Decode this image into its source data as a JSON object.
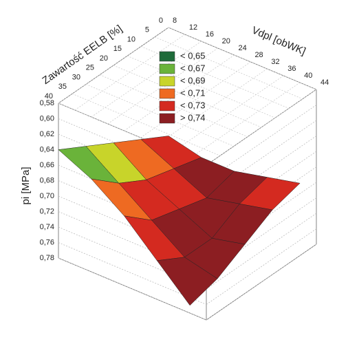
{
  "chart_data": {
    "type": "surface3d",
    "xlabel": "Zawartość EELB [%]",
    "ylabel": "Vdpl [obWK]",
    "zlabel": "pi [MPa]",
    "xlim": [
      0,
      40
    ],
    "xticks": [
      0,
      5,
      10,
      15,
      20,
      25,
      30,
      35,
      40
    ],
    "ylim": [
      8,
      44
    ],
    "yticks": [
      8,
      12,
      16,
      20,
      24,
      28,
      32,
      36,
      40,
      44
    ],
    "zlim": [
      0.58,
      0.78
    ],
    "zticks": [
      {
        "value": 0.58,
        "label": "0,58"
      },
      {
        "value": 0.6,
        "label": "0,60"
      },
      {
        "value": 0.62,
        "label": "0,62"
      },
      {
        "value": 0.64,
        "label": "0,64"
      },
      {
        "value": 0.66,
        "label": "0,66"
      },
      {
        "value": 0.68,
        "label": "0,68"
      },
      {
        "value": 0.7,
        "label": "0,70"
      },
      {
        "value": 0.72,
        "label": "0,72"
      },
      {
        "value": 0.74,
        "label": "0,74"
      },
      {
        "value": 0.76,
        "label": "0,76"
      },
      {
        "value": 0.78,
        "label": "0,78"
      }
    ],
    "levels": [
      {
        "value": 0.65,
        "label": "< 0,65",
        "color": "#1f6b3a"
      },
      {
        "value": 0.67,
        "label": "< 0,67",
        "color": "#6ab33a"
      },
      {
        "value": 0.69,
        "label": "< 0,69",
        "color": "#c8d42a"
      },
      {
        "value": 0.71,
        "label": "< 0,71",
        "color": "#ee6a22"
      },
      {
        "value": 0.73,
        "label": "< 0,73",
        "color": "#d42a20"
      },
      {
        "value": 0.74,
        "label": "> 0,74",
        "color": "#8c1e22"
      }
    ],
    "surface": {
      "x": [
        0,
        10,
        20,
        30,
        40
      ],
      "y": [
        8,
        16,
        24,
        32,
        40
      ],
      "z": [
        [
          0.72,
          0.73,
          0.73,
          0.72,
          0.71
        ],
        [
          0.7,
          0.72,
          0.74,
          0.73,
          0.72
        ],
        [
          0.68,
          0.71,
          0.73,
          0.75,
          0.74
        ],
        [
          0.66,
          0.69,
          0.72,
          0.75,
          0.76
        ],
        [
          0.64,
          0.66,
          0.69,
          0.73,
          0.77
        ]
      ]
    },
    "grid": true
  }
}
